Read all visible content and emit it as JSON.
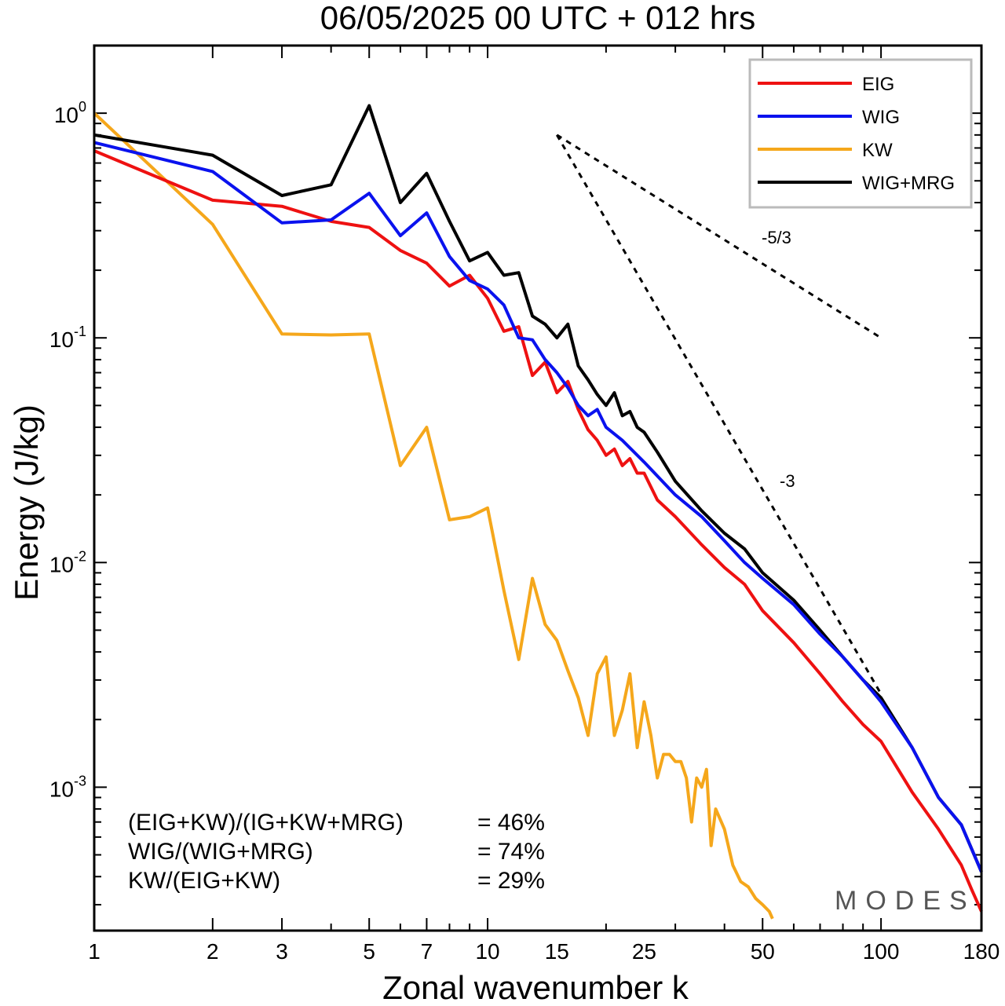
{
  "chart_data": {
    "type": "line",
    "title": "06/05/2025  00 UTC  + 012 hrs",
    "xlabel": "Zonal wavenumber k",
    "ylabel": "Energy (J/kg)",
    "xscale": "log",
    "yscale": "log",
    "xlim": [
      1,
      180
    ],
    "ylim": [
      0.00023,
      2.0
    ],
    "xticks": [
      1,
      2,
      3,
      5,
      7,
      10,
      15,
      25,
      50,
      100,
      180
    ],
    "xtick_labels": [
      "1",
      "2",
      "3",
      "5",
      "7",
      "10",
      "15",
      "25",
      "50",
      "100",
      "180"
    ],
    "yticks": [
      1,
      0.1,
      0.01,
      0.001
    ],
    "ytick_labels": [
      {
        "base": "10",
        "exp": "0"
      },
      {
        "base": "10",
        "exp": "-1"
      },
      {
        "base": "10",
        "exp": "-2"
      },
      {
        "base": "10",
        "exp": "-3"
      }
    ],
    "grid": false,
    "legend_position": "top-right",
    "series": [
      {
        "name": "EIG",
        "color": "#ee1111",
        "x": [
          1,
          2,
          3,
          4,
          5,
          6,
          7,
          8,
          9,
          10,
          11,
          12,
          13,
          14,
          15,
          16,
          17,
          18,
          19,
          20,
          21,
          22,
          23,
          24,
          25,
          27,
          30,
          35,
          40,
          45,
          50,
          60,
          70,
          80,
          90,
          100,
          120,
          140,
          160,
          170,
          180
        ],
        "y": [
          0.68,
          0.41,
          0.385,
          0.33,
          0.31,
          0.245,
          0.215,
          0.17,
          0.19,
          0.15,
          0.107,
          0.112,
          0.068,
          0.078,
          0.057,
          0.064,
          0.048,
          0.039,
          0.035,
          0.03,
          0.032,
          0.027,
          0.029,
          0.025,
          0.025,
          0.019,
          0.016,
          0.012,
          0.0095,
          0.008,
          0.0061,
          0.0044,
          0.0032,
          0.0024,
          0.0019,
          0.0016,
          0.00095,
          0.00065,
          0.00045,
          0.00035,
          0.00028
        ]
      },
      {
        "name": "WIG",
        "color": "#0a12ee",
        "x": [
          1,
          2,
          3,
          4,
          5,
          6,
          7,
          8,
          9,
          10,
          11,
          12,
          13,
          14,
          15,
          16,
          17,
          18,
          19,
          20,
          22,
          25,
          30,
          35,
          40,
          45,
          50,
          60,
          70,
          80,
          90,
          100,
          120,
          140,
          160,
          180
        ],
        "y": [
          0.74,
          0.55,
          0.325,
          0.335,
          0.44,
          0.285,
          0.36,
          0.23,
          0.18,
          0.165,
          0.14,
          0.1,
          0.098,
          0.08,
          0.07,
          0.06,
          0.05,
          0.045,
          0.048,
          0.04,
          0.035,
          0.028,
          0.02,
          0.016,
          0.0125,
          0.01,
          0.0085,
          0.0065,
          0.0048,
          0.0038,
          0.003,
          0.0024,
          0.0015,
          0.0009,
          0.00068,
          0.00042
        ]
      },
      {
        "name": "KW",
        "color": "#f5a71b",
        "x": [
          1,
          2,
          3,
          4,
          5,
          6,
          7,
          8,
          9,
          10,
          11,
          12,
          13,
          14,
          15,
          16,
          17,
          18,
          19,
          20,
          21,
          22,
          23,
          24,
          25,
          26,
          27,
          28,
          29,
          30,
          31,
          32,
          33,
          34,
          35,
          36,
          37,
          38,
          39,
          40,
          42,
          44,
          46,
          48,
          50,
          52,
          53
        ],
        "y": [
          1.0,
          0.32,
          0.104,
          0.103,
          0.104,
          0.027,
          0.04,
          0.0155,
          0.016,
          0.0175,
          0.0075,
          0.0037,
          0.0085,
          0.0053,
          0.0045,
          0.0033,
          0.0025,
          0.0017,
          0.0032,
          0.0038,
          0.0017,
          0.0022,
          0.0032,
          0.0015,
          0.0024,
          0.0017,
          0.0011,
          0.0014,
          0.0014,
          0.0013,
          0.0013,
          0.0011,
          0.0007,
          0.0011,
          0.001,
          0.0012,
          0.00055,
          0.0008,
          0.00072,
          0.00065,
          0.00045,
          0.00038,
          0.00036,
          0.00032,
          0.0003,
          0.00028,
          0.00026
        ]
      },
      {
        "name": "WIG+MRG",
        "color": "#000000",
        "x": [
          1,
          2,
          3,
          4,
          5,
          6,
          7,
          8,
          9,
          10,
          11,
          12,
          13,
          14,
          15,
          16,
          17,
          18,
          19,
          20,
          21,
          22,
          23,
          24,
          25,
          27,
          30,
          35,
          40,
          45,
          50,
          60,
          70,
          80,
          90,
          100,
          120,
          140,
          160,
          180
        ],
        "y": [
          0.8,
          0.65,
          0.43,
          0.48,
          1.08,
          0.4,
          0.54,
          0.33,
          0.22,
          0.24,
          0.19,
          0.195,
          0.125,
          0.115,
          0.1,
          0.115,
          0.075,
          0.065,
          0.056,
          0.05,
          0.057,
          0.045,
          0.047,
          0.04,
          0.038,
          0.031,
          0.023,
          0.017,
          0.0135,
          0.0115,
          0.009,
          0.0068,
          0.005,
          0.0038,
          0.003,
          0.0025,
          0.0015,
          0.0009,
          0.00068,
          0.00042
        ]
      }
    ],
    "reference_lines": [
      {
        "label": "-5/3",
        "x": [
          15,
          100
        ],
        "y": [
          0.8,
          0.1
        ]
      },
      {
        "label": "-3",
        "x": [
          15,
          100
        ],
        "y": [
          0.8,
          0.0026
        ]
      }
    ],
    "annotations": [
      {
        "text": "(EIG+KW)/(IG+KW+MRG)",
        "value": "= 46%"
      },
      {
        "text": "WIG/(WIG+MRG)",
        "value": "= 74%"
      },
      {
        "text": "KW/(EIG+KW)",
        "value": "= 29%"
      }
    ],
    "watermark": "MODES"
  }
}
